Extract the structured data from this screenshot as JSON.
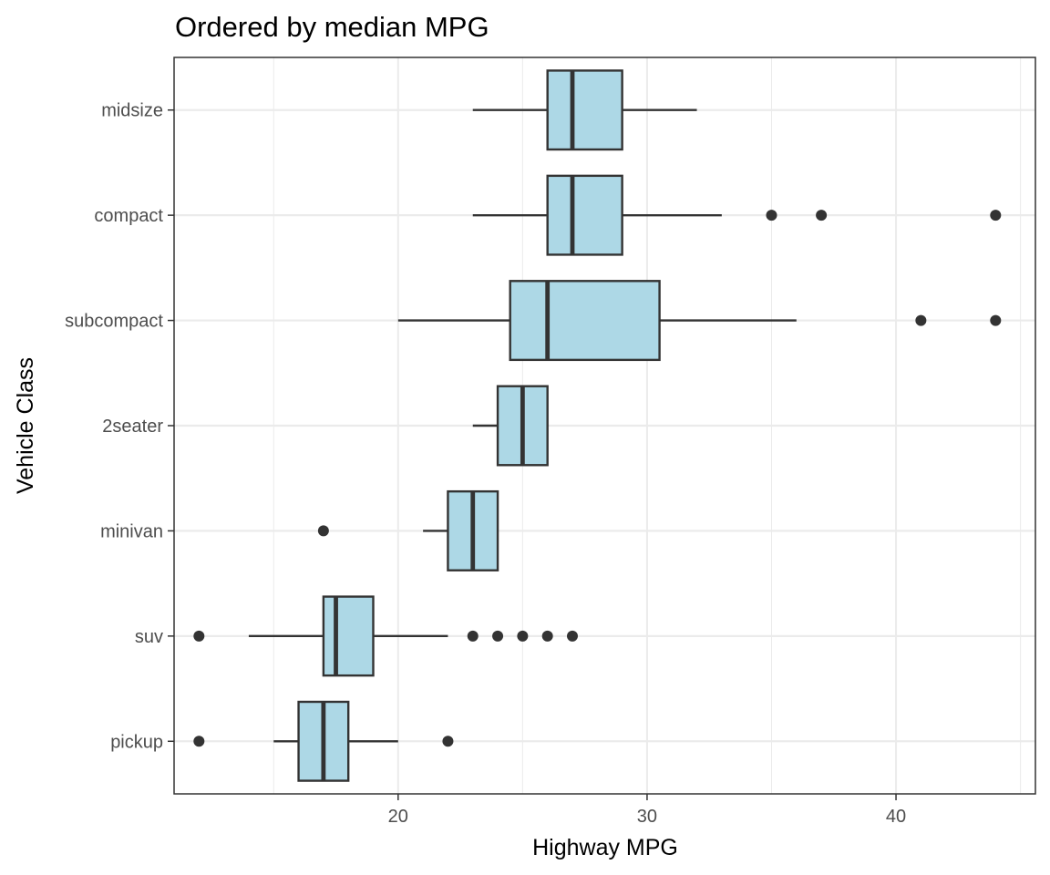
{
  "chart_data": {
    "type": "boxplot",
    "orientation": "horizontal",
    "title": "Ordered by median MPG",
    "xlabel": "Highway MPG",
    "ylabel": "Vehicle Class",
    "xlim": [
      11.0,
      45.6
    ],
    "xticks": [
      20,
      30,
      40
    ],
    "xtick_labels": [
      "20",
      "30",
      "40"
    ],
    "grid": true,
    "box_fill": "#add8e6",
    "line_color": "#333333",
    "categories": [
      "midsize",
      "compact",
      "subcompact",
      "2seater",
      "minivan",
      "suv",
      "pickup"
    ],
    "series": [
      {
        "name": "midsize",
        "whisker_low": 23,
        "q1": 26,
        "median": 27,
        "q3": 29,
        "whisker_high": 32,
        "outliers": []
      },
      {
        "name": "compact",
        "whisker_low": 23,
        "q1": 26,
        "median": 27,
        "q3": 29,
        "whisker_high": 33,
        "outliers": [
          35,
          37,
          44
        ]
      },
      {
        "name": "subcompact",
        "whisker_low": 20,
        "q1": 24.5,
        "median": 26,
        "q3": 30.5,
        "whisker_high": 36,
        "outliers": [
          41,
          44
        ]
      },
      {
        "name": "2seater",
        "whisker_low": 23,
        "q1": 24,
        "median": 25,
        "q3": 26,
        "whisker_high": 26,
        "outliers": []
      },
      {
        "name": "minivan",
        "whisker_low": 21,
        "q1": 22,
        "median": 23,
        "q3": 24,
        "whisker_high": 24,
        "outliers": [
          17
        ]
      },
      {
        "name": "suv",
        "whisker_low": 14,
        "q1": 17,
        "median": 17.5,
        "q3": 19,
        "whisker_high": 22,
        "outliers": [
          12,
          23,
          24,
          25,
          26,
          27
        ]
      },
      {
        "name": "pickup",
        "whisker_low": 15,
        "q1": 16,
        "median": 17,
        "q3": 18,
        "whisker_high": 20,
        "outliers": [
          12,
          22
        ]
      }
    ]
  }
}
